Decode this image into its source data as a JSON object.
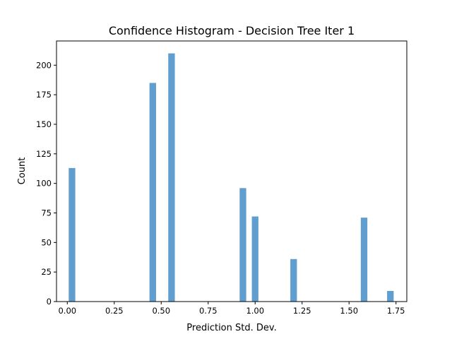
{
  "chart_data": {
    "type": "bar",
    "title": "Confidence Histogram - Decision Tree Iter 1",
    "xlabel": "Prediction Std. Dev.",
    "ylabel": "Count",
    "xlim": [
      -0.0575,
      1.8075
    ],
    "ylim": [
      0,
      220.5
    ],
    "bin_width": 0.035,
    "bar_color": "#5f9ecf",
    "x_ticks": [
      "0.00",
      "0.25",
      "0.50",
      "0.75",
      "1.00",
      "1.25",
      "1.50",
      "1.75"
    ],
    "y_ticks": [
      "0",
      "25",
      "50",
      "75",
      "100",
      "125",
      "150",
      "175",
      "200"
    ],
    "bins": [
      {
        "x": 0.025,
        "value": 113
      },
      {
        "x": 0.455,
        "value": 185
      },
      {
        "x": 0.555,
        "value": 210
      },
      {
        "x": 0.935,
        "value": 96
      },
      {
        "x": 1.0,
        "value": 72
      },
      {
        "x": 1.205,
        "value": 36
      },
      {
        "x": 1.58,
        "value": 71
      },
      {
        "x": 1.72,
        "value": 9
      }
    ],
    "grid": false,
    "legend": "none"
  }
}
